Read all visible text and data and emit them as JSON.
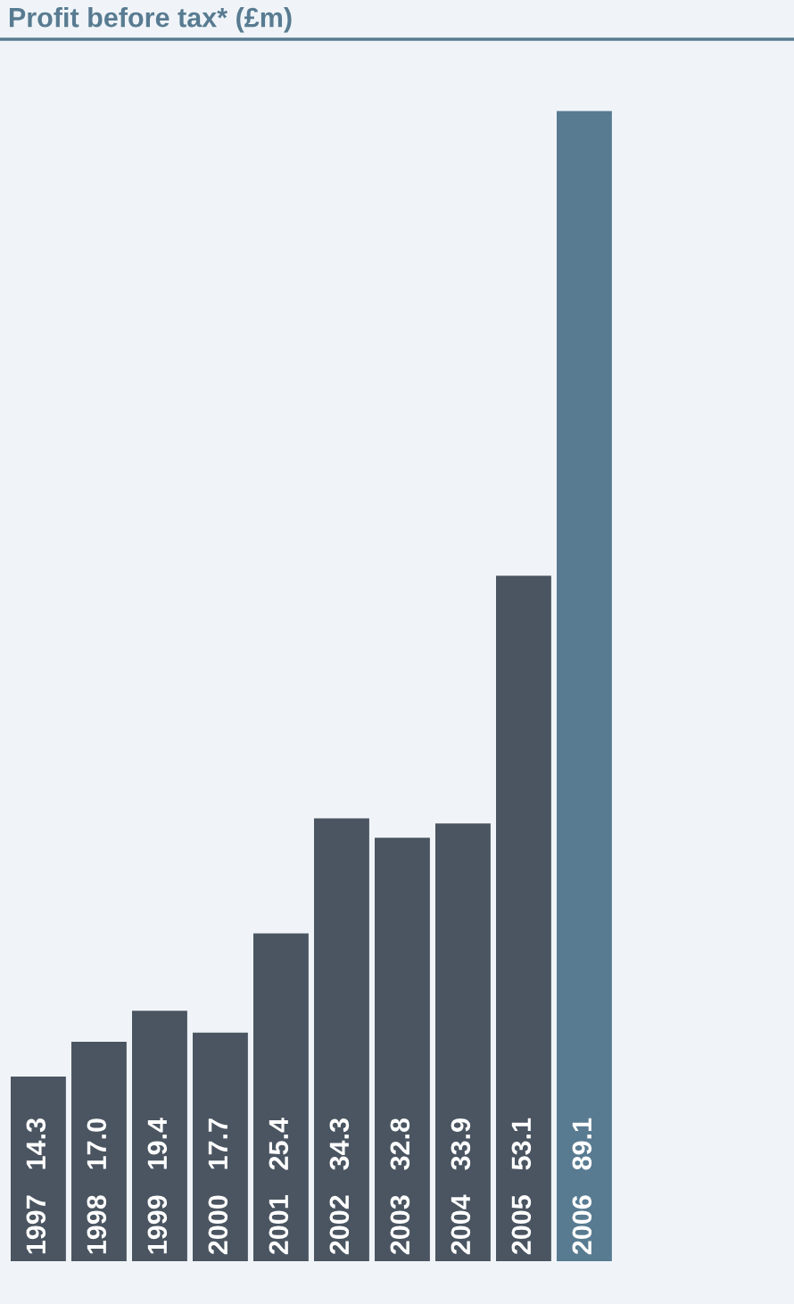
{
  "chart_data": {
    "type": "bar",
    "title": "Profit before tax* (£m)",
    "categories": [
      "1997",
      "1998",
      "1999",
      "2000",
      "2001",
      "2002",
      "2003",
      "2004",
      "2005",
      "2006"
    ],
    "values": [
      14.3,
      17.0,
      19.4,
      17.7,
      25.4,
      34.3,
      32.8,
      33.9,
      53.1,
      89.1
    ],
    "colors": [
      "#4a5561",
      "#4a5561",
      "#4a5561",
      "#4a5561",
      "#4a5561",
      "#4a5561",
      "#4a5561",
      "#4a5561",
      "#4a5561",
      "#587b91"
    ],
    "value_labels": [
      "14.3",
      "17.0",
      "19.4",
      "17.7",
      "25.4",
      "34.3",
      "32.8",
      "33.9",
      "53.1",
      "89.1"
    ]
  }
}
